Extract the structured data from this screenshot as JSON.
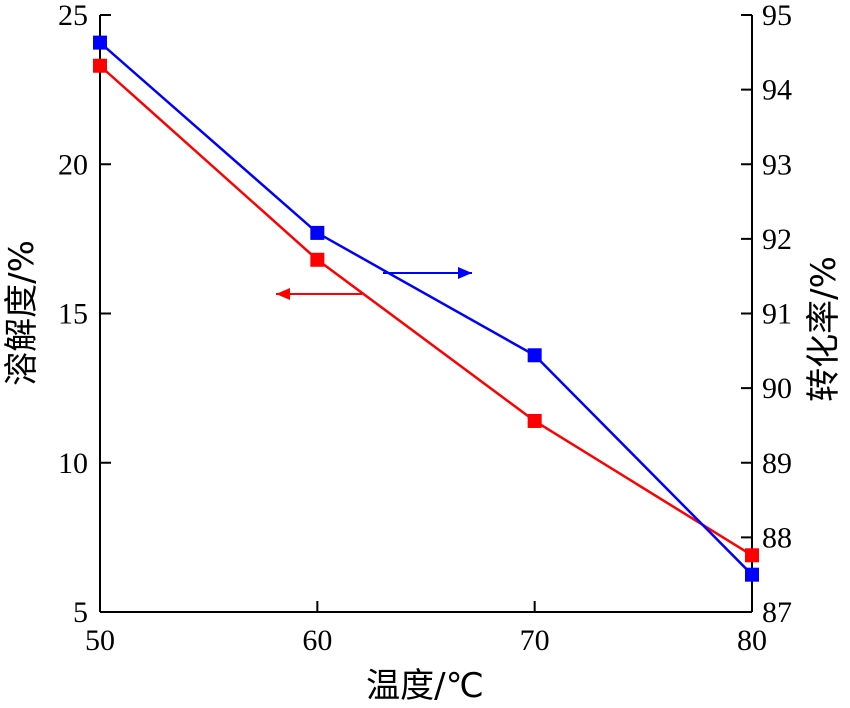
{
  "chart_data": {
    "type": "line",
    "xlabel": "温度/℃",
    "ylabel_left": "溶解度/%",
    "ylabel_right": "转化率/%",
    "x": [
      50,
      60,
      70,
      80
    ],
    "xlim": [
      50,
      80
    ],
    "xticks": [
      "50",
      "60",
      "70",
      "80"
    ],
    "ylim_left": [
      5,
      25
    ],
    "yticks_left": [
      "5",
      "10",
      "15",
      "20",
      "25"
    ],
    "ylim_right": [
      87,
      95
    ],
    "yticks_right": [
      "87",
      "88",
      "89",
      "90",
      "91",
      "92",
      "93",
      "94",
      "95"
    ],
    "grid": false,
    "series": [
      {
        "axis": "left",
        "color": "#ff0000",
        "values": [
          23.3,
          16.8,
          11.4,
          6.9
        ]
      },
      {
        "axis": "right",
        "color": "#0000ff",
        "values": [
          94.63,
          92.08,
          90.44,
          87.5
        ]
      }
    ],
    "annotations": [
      {
        "type": "arrow",
        "direction": "left",
        "color": "#ff0000",
        "points_to": "left axis"
      },
      {
        "type": "arrow",
        "direction": "right",
        "color": "#0000ff",
        "points_to": "right axis"
      }
    ]
  }
}
